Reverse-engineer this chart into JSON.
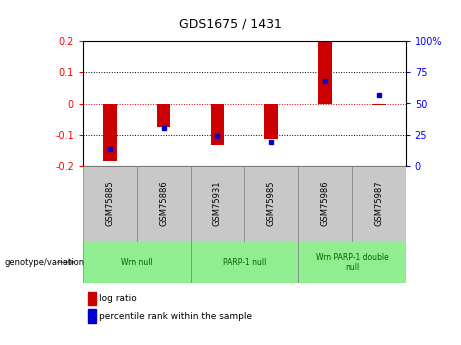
{
  "title": "GDS1675 / 1431",
  "samples": [
    "GSM75885",
    "GSM75886",
    "GSM75931",
    "GSM75985",
    "GSM75986",
    "GSM75987"
  ],
  "log_ratio": [
    -0.185,
    -0.075,
    -0.135,
    -0.115,
    0.2,
    -0.005
  ],
  "percentile_rank": [
    13,
    30,
    24,
    19,
    68,
    57
  ],
  "ylim_left": [
    -0.2,
    0.2
  ],
  "ylim_right": [
    0,
    100
  ],
  "group_boundaries": [
    {
      "start": 0,
      "end": 1,
      "label": "Wrn null"
    },
    {
      "start": 2,
      "end": 3,
      "label": "PARP-1 null"
    },
    {
      "start": 4,
      "end": 5,
      "label": "Wrn PARP-1 double\nnull"
    }
  ],
  "bar_color": "#cc0000",
  "dot_color": "#0000cc",
  "zero_line_color": "#cc0000",
  "grid_color": "#000000",
  "bg_color": "#ffffff",
  "label_area_color": "#c8c8c8",
  "group_color": "#90EE90",
  "yticks_left": [
    -0.2,
    -0.1,
    0,
    0.1,
    0.2
  ],
  "yticks_right": [
    0,
    25,
    50,
    75,
    100
  ],
  "bar_width": 0.25
}
